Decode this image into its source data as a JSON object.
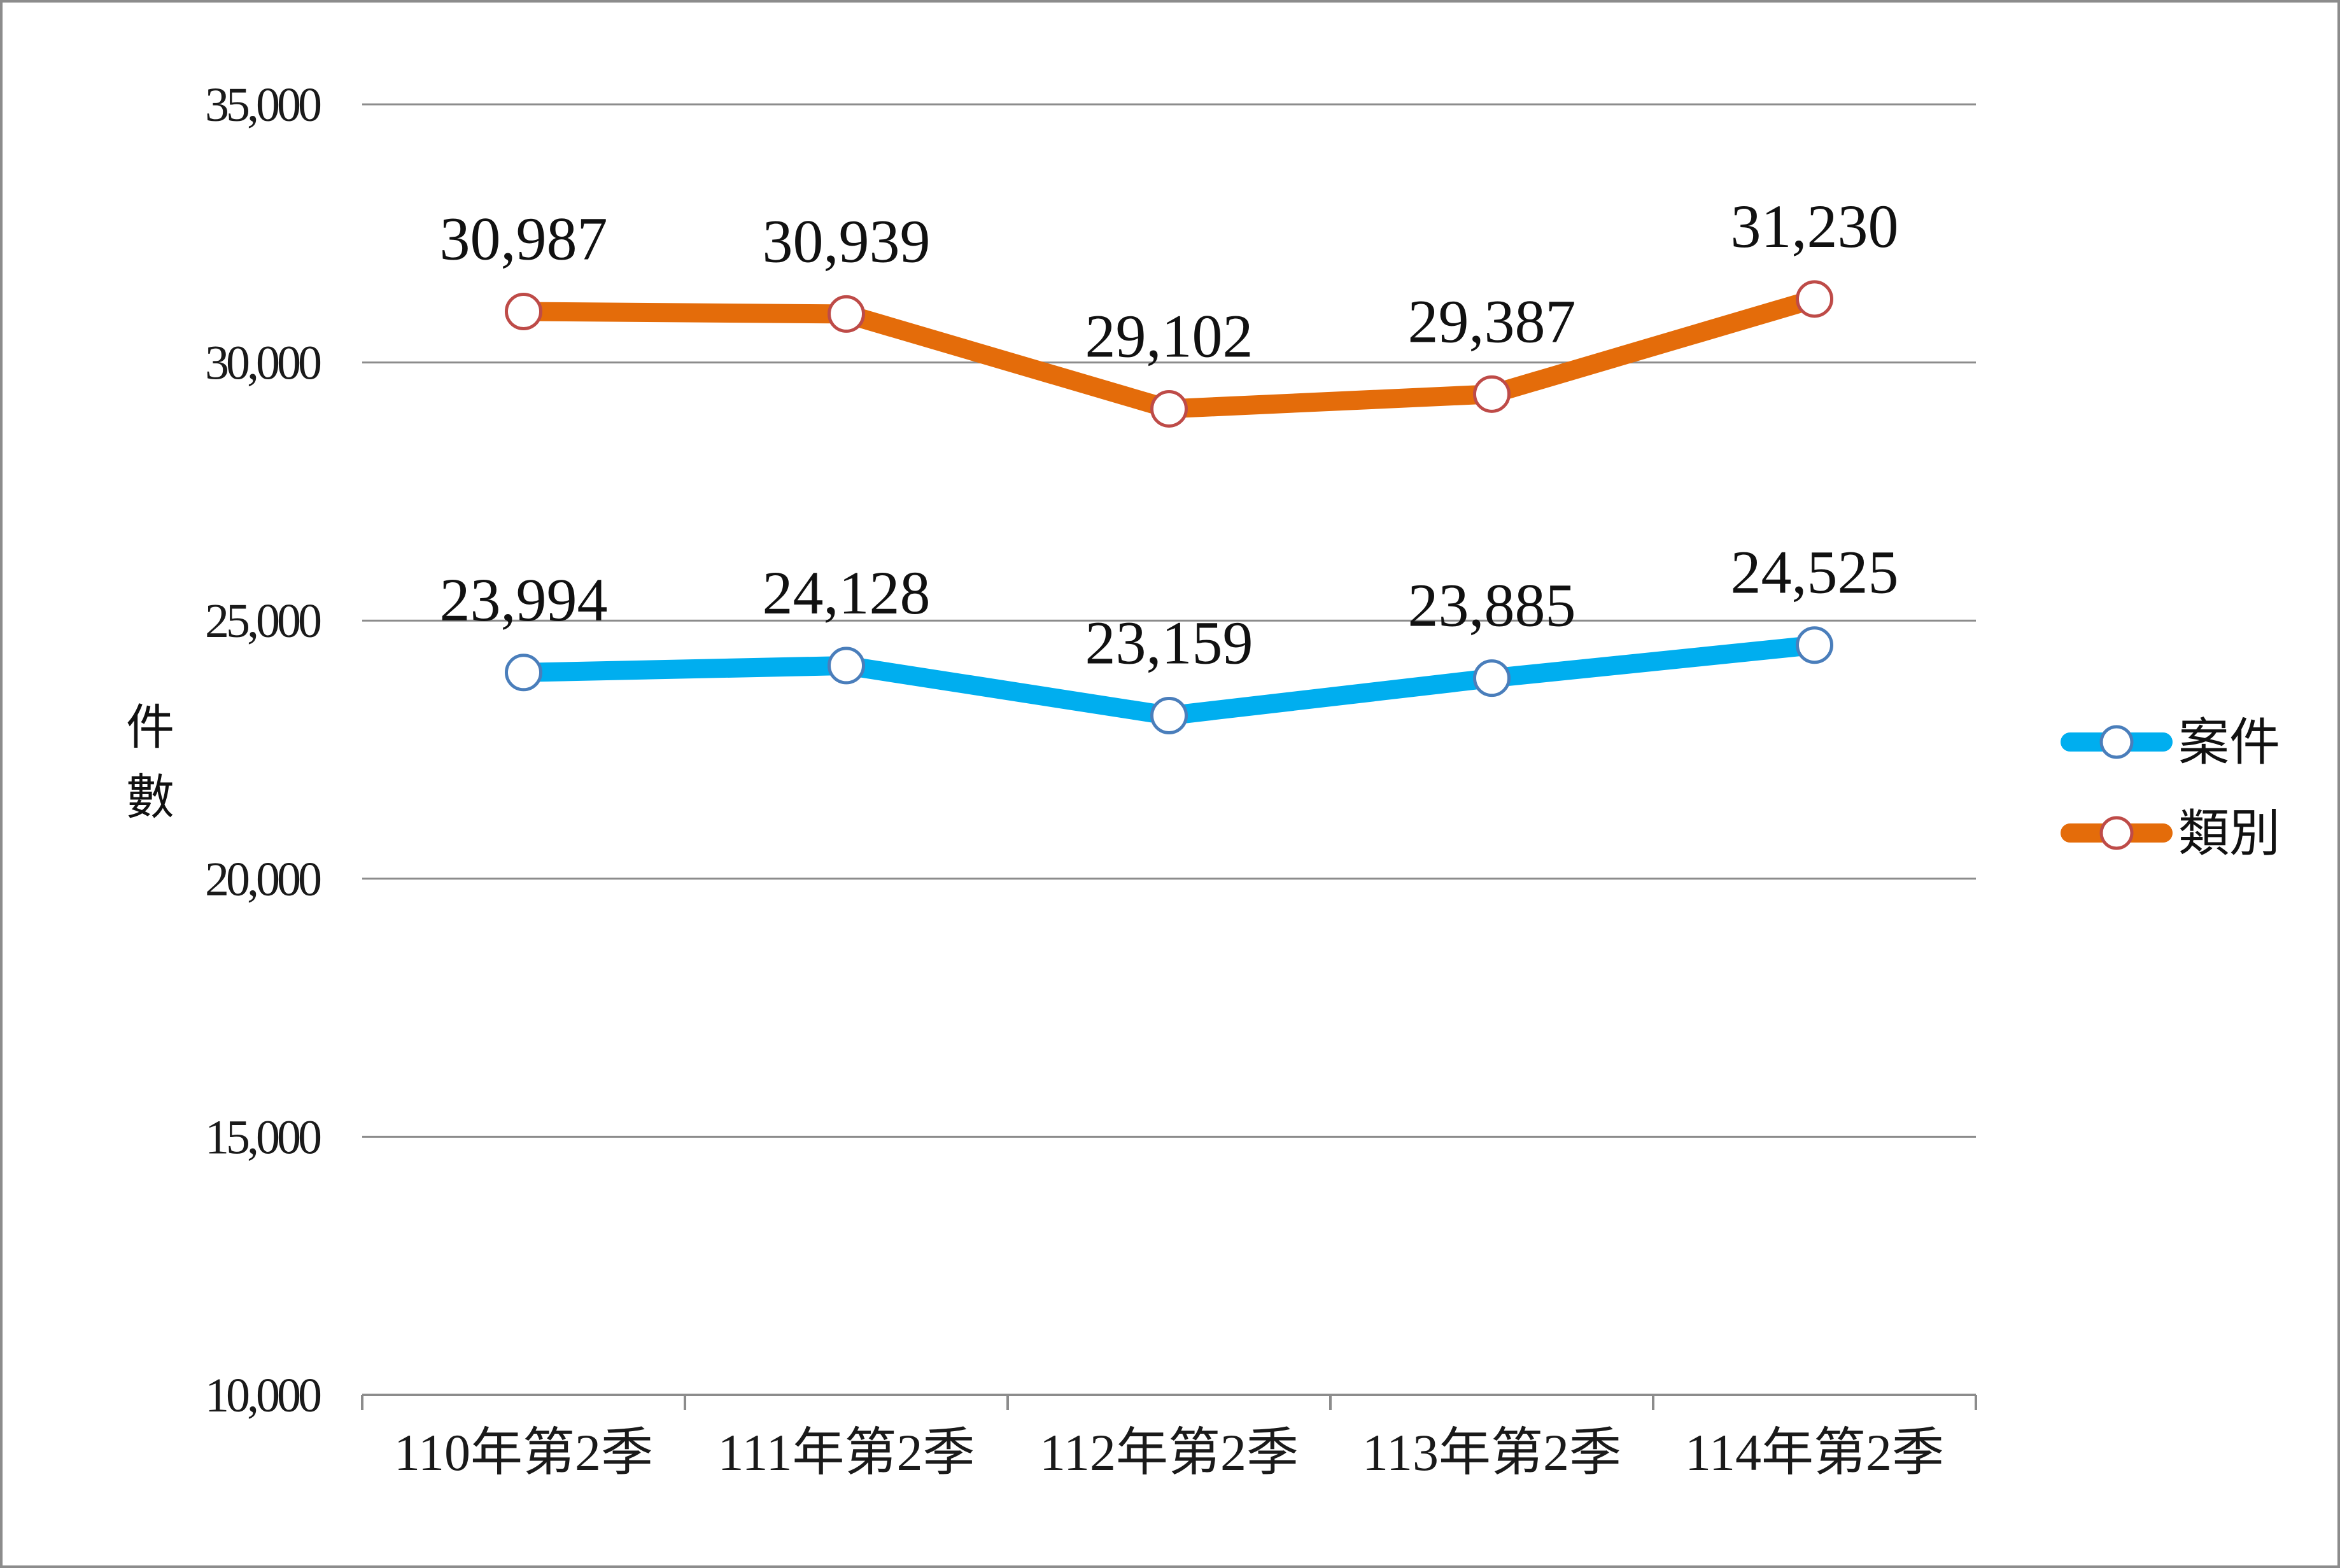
{
  "chart_data": {
    "type": "line",
    "ylabel": "件數",
    "ylim": [
      10000,
      35000
    ],
    "yticks": [
      10000,
      15000,
      20000,
      25000,
      30000,
      35000
    ],
    "ytick_labels": [
      "10,000",
      "15,000",
      "20,000",
      "25,000",
      "30,000",
      "35,000"
    ],
    "categories": [
      "110年第2季",
      "111年第2季",
      "112年第2季",
      "113年第2季",
      "114年第2季"
    ],
    "grid": true,
    "legend_position": "right",
    "series": [
      {
        "name": "案件",
        "color": "#00aeef",
        "marker_edge_color": "#4a7ebb",
        "values": [
          23994,
          24128,
          23159,
          23885,
          24525
        ],
        "labels": [
          "23,994",
          "24,128",
          "23,159",
          "23,885",
          "24,525"
        ]
      },
      {
        "name": "類別",
        "color": "#e46c0a",
        "marker_edge_color": "#be4b48",
        "values": [
          30987,
          30939,
          29102,
          29387,
          31230
        ],
        "labels": [
          "30,987",
          "30,939",
          "29,102",
          "29,387",
          "31,230"
        ]
      }
    ]
  }
}
